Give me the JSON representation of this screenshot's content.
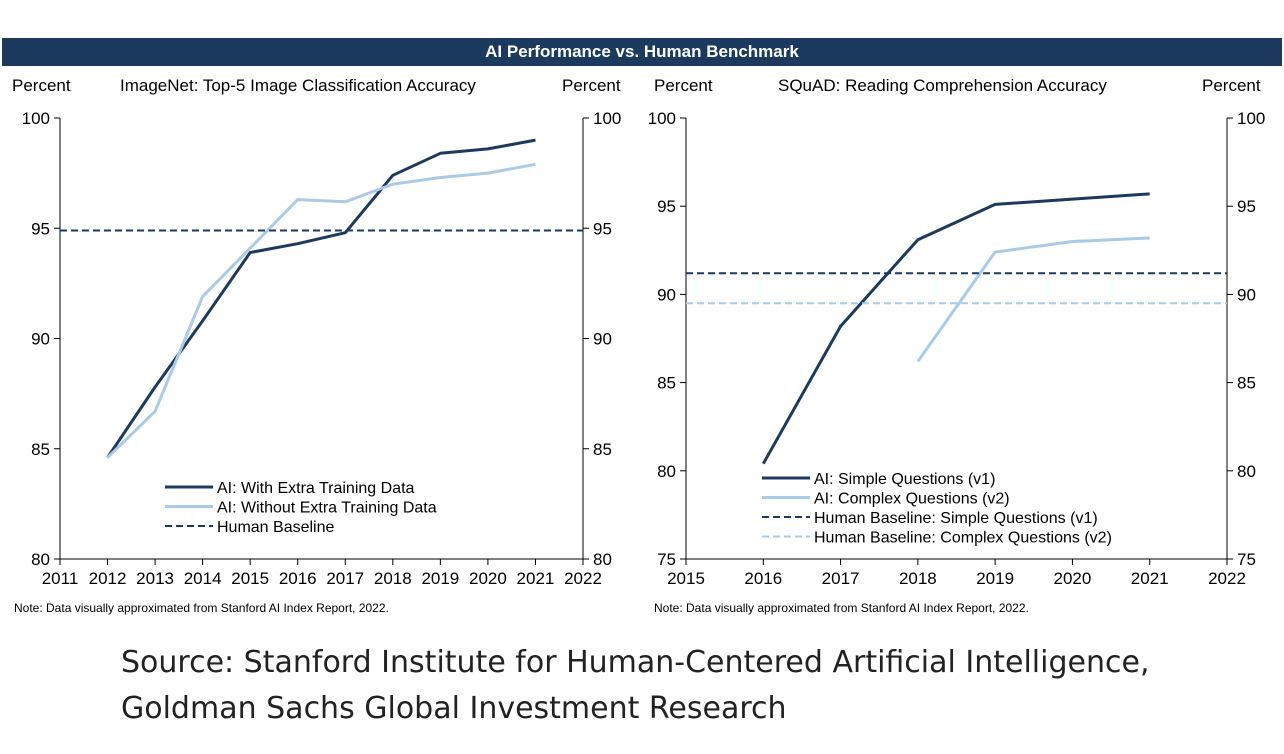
{
  "header": {
    "title": "AI Performance vs. Human Benchmark"
  },
  "colors": {
    "dark": "#1b3a5e",
    "light": "#a9cbe8",
    "header_bg": "#1b3a5e"
  },
  "chart_data": [
    {
      "type": "line",
      "title": "ImageNet: Top-5 Image Classification Accuracy",
      "ylabel_left": "Percent",
      "ylabel_right": "Percent",
      "xlim": [
        2011,
        2022
      ],
      "ylim": [
        80,
        100
      ],
      "x_ticks": [
        "2011",
        "2012",
        "2013",
        "2014",
        "2015",
        "2016",
        "2017",
        "2018",
        "2019",
        "2020",
        "2021",
        "2022"
      ],
      "y_ticks": [
        "80",
        "85",
        "90",
        "95",
        "100"
      ],
      "legend_position": "lower-center",
      "series": [
        {
          "name": "AI: With Extra Training Data",
          "style": "solid",
          "color": "#1b3a5e",
          "x": [
            2012,
            2013,
            2014,
            2015,
            2016,
            2017,
            2018,
            2019,
            2020,
            2021
          ],
          "y": [
            84.6,
            87.8,
            90.8,
            93.9,
            94.3,
            94.8,
            97.4,
            98.4,
            98.6,
            99.0
          ]
        },
        {
          "name": "AI: Without Extra Training Data",
          "style": "solid",
          "color": "#a9cbe8",
          "x": [
            2012,
            2013,
            2014,
            2015,
            2016,
            2017,
            2018,
            2019,
            2020,
            2021
          ],
          "y": [
            84.6,
            86.7,
            91.9,
            94.1,
            96.3,
            96.2,
            97.0,
            97.3,
            97.5,
            97.9
          ]
        },
        {
          "name": "Human Baseline",
          "style": "dashed",
          "color": "#1b3a5e",
          "x": [
            2011,
            2022
          ],
          "y": [
            94.9,
            94.9
          ]
        }
      ],
      "note": "Note: Data visually approximated from Stanford AI Index Report, 2022."
    },
    {
      "type": "line",
      "title": "SQuAD: Reading Comprehension Accuracy",
      "ylabel_left": "Percent",
      "ylabel_right": "Percent",
      "xlim": [
        2015,
        2022
      ],
      "ylim": [
        75,
        100
      ],
      "x_ticks": [
        "2015",
        "2016",
        "2017",
        "2018",
        "2019",
        "2020",
        "2021",
        "2022"
      ],
      "y_ticks": [
        "75",
        "80",
        "85",
        "90",
        "95",
        "100"
      ],
      "legend_position": "lower-center",
      "series": [
        {
          "name": "AI: Simple Questions (v1)",
          "style": "solid",
          "color": "#1b3a5e",
          "x": [
            2016,
            2017,
            2018,
            2019,
            2020,
            2021
          ],
          "y": [
            80.4,
            88.2,
            93.1,
            95.1,
            95.4,
            95.7
          ]
        },
        {
          "name": "AI: Complex Questions (v2)",
          "style": "solid",
          "color": "#a9cbe8",
          "x": [
            2018,
            2019,
            2020,
            2021
          ],
          "y": [
            86.2,
            92.4,
            93.0,
            93.2
          ]
        },
        {
          "name": "Human Baseline: Simple Questions (v1)",
          "style": "dashed",
          "color": "#1b3a5e",
          "x": [
            2015,
            2022
          ],
          "y": [
            91.2,
            91.2
          ]
        },
        {
          "name": "Human Baseline: Complex Questions (v2)",
          "style": "dashed",
          "color": "#a9cbe8",
          "x": [
            2015,
            2022
          ],
          "y": [
            89.5,
            89.5
          ]
        }
      ],
      "note": "Note: Data visually approximated from Stanford AI Index Report, 2022."
    }
  ],
  "source": {
    "line1": "Source: Stanford Institute for Human-Centered Artificial Intelligence,",
    "line2": "Goldman Sachs Global Investment Research"
  }
}
